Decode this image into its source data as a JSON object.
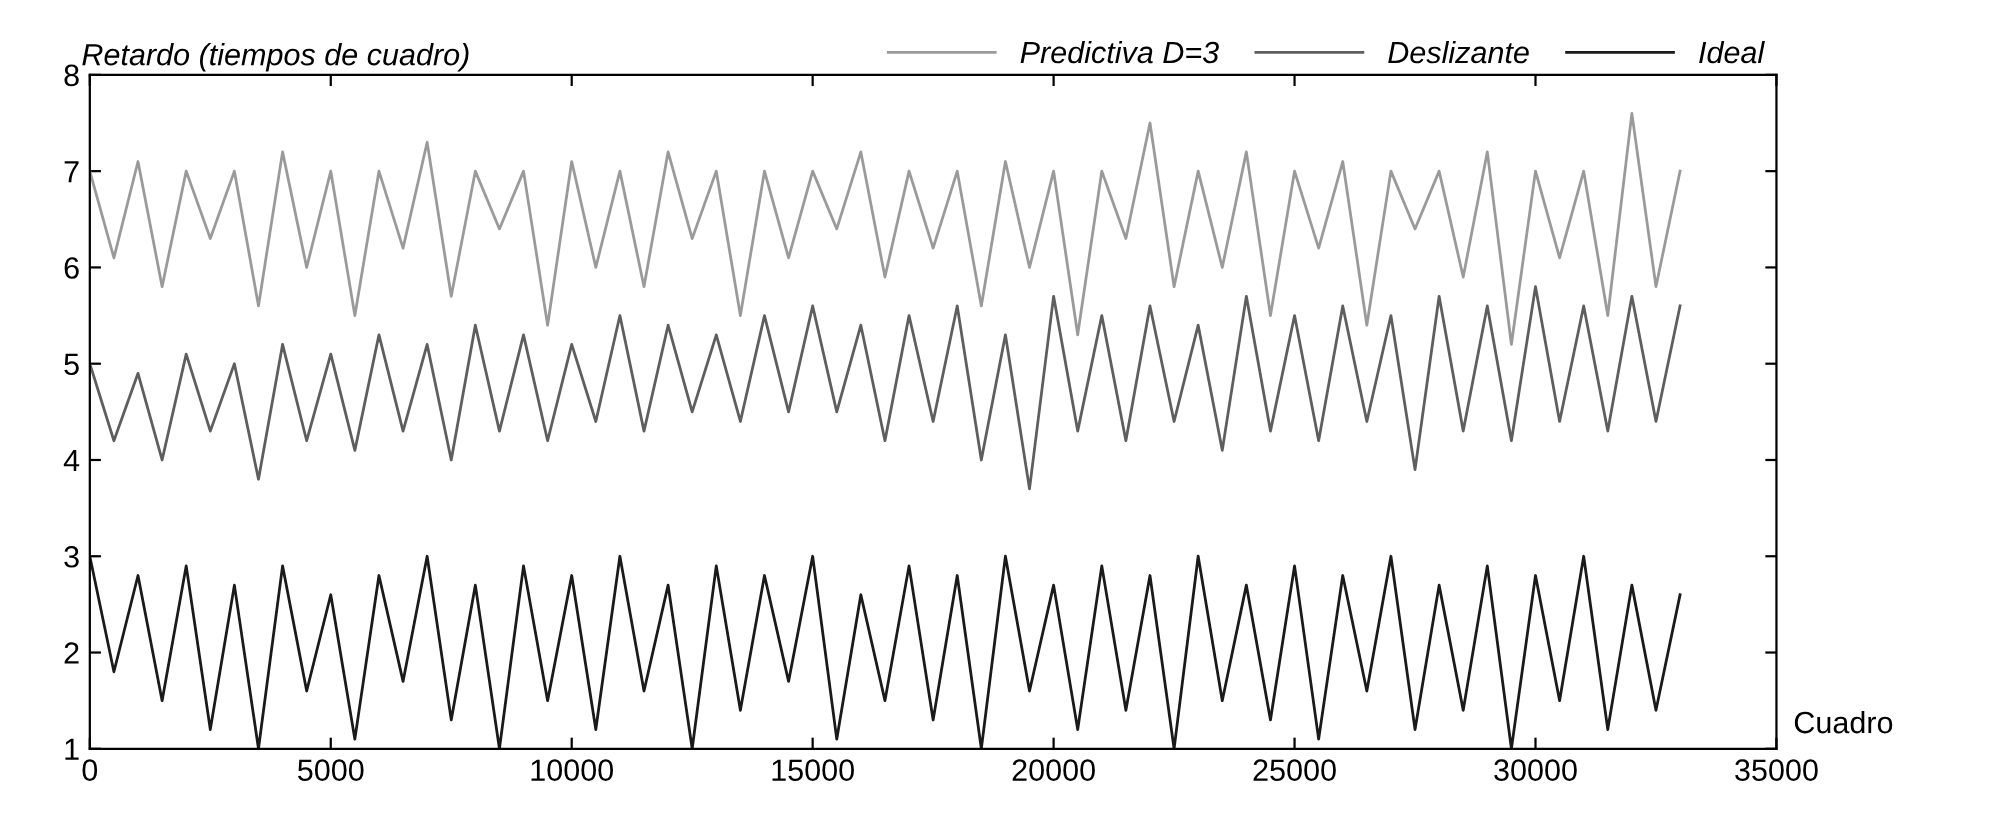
{
  "chart_data": {
    "type": "line",
    "ylabel": "Retardo (tiempos de cuadro)",
    "xlabel": "Cuadro",
    "legend": "top",
    "grid": false,
    "marker": "none",
    "line_style": "solid",
    "xlim": [
      0,
      35000
    ],
    "xticks": [
      0,
      5000,
      10000,
      15000,
      20000,
      25000,
      30000,
      35000
    ],
    "ylim": [
      1,
      8
    ],
    "yticks": [
      1,
      2,
      3,
      4,
      5,
      6,
      7,
      8
    ],
    "x": [
      0,
      500,
      1000,
      1500,
      2000,
      2500,
      3000,
      3500,
      4000,
      4500,
      5000,
      5500,
      6000,
      6500,
      7000,
      7500,
      8000,
      8500,
      9000,
      9500,
      10000,
      10500,
      11000,
      11500,
      12000,
      12500,
      13000,
      13500,
      14000,
      14500,
      15000,
      15500,
      16000,
      16500,
      17000,
      17500,
      18000,
      18500,
      19000,
      19500,
      20000,
      20500,
      21000,
      21500,
      22000,
      22500,
      23000,
      23500,
      24000,
      24500,
      25000,
      25500,
      26000,
      26500,
      27000,
      27500,
      28000,
      28500,
      29000,
      29500,
      30000,
      30500,
      31000,
      31500,
      32000,
      32500,
      33000
    ],
    "series": [
      {
        "name": "Predictiva D=3",
        "color": "#9a9a9a",
        "values": [
          7.0,
          6.1,
          7.1,
          5.8,
          7.0,
          6.3,
          7.0,
          5.6,
          7.2,
          6.0,
          7.0,
          5.5,
          7.0,
          6.2,
          7.3,
          5.7,
          7.0,
          6.4,
          7.0,
          5.4,
          7.1,
          6.0,
          7.0,
          5.8,
          7.2,
          6.3,
          7.0,
          5.5,
          7.0,
          6.1,
          7.0,
          6.4,
          7.2,
          5.9,
          7.0,
          6.2,
          7.0,
          5.6,
          7.1,
          6.0,
          7.0,
          5.3,
          7.0,
          6.3,
          7.5,
          5.8,
          7.0,
          6.0,
          7.2,
          5.5,
          7.0,
          6.2,
          7.1,
          5.4,
          7.0,
          6.4,
          7.0,
          5.9,
          7.2,
          5.2,
          7.0,
          6.1,
          7.0,
          5.5,
          7.6,
          5.8,
          7.0
        ]
      },
      {
        "name": "Deslizante",
        "color": "#5e5e5e",
        "values": [
          5.0,
          4.2,
          4.9,
          4.0,
          5.1,
          4.3,
          5.0,
          3.8,
          5.2,
          4.2,
          5.1,
          4.1,
          5.3,
          4.3,
          5.2,
          4.0,
          5.4,
          4.3,
          5.3,
          4.2,
          5.2,
          4.4,
          5.5,
          4.3,
          5.4,
          4.5,
          5.3,
          4.4,
          5.5,
          4.5,
          5.6,
          4.5,
          5.4,
          4.2,
          5.5,
          4.4,
          5.6,
          4.0,
          5.3,
          3.7,
          5.7,
          4.3,
          5.5,
          4.2,
          5.6,
          4.4,
          5.4,
          4.1,
          5.7,
          4.3,
          5.5,
          4.2,
          5.6,
          4.4,
          5.5,
          3.9,
          5.7,
          4.3,
          5.6,
          4.2,
          5.8,
          4.4,
          5.6,
          4.3,
          5.7,
          4.4,
          5.6
        ]
      },
      {
        "name": "Ideal",
        "color": "#1a1a1a",
        "values": [
          3.0,
          1.8,
          2.8,
          1.5,
          2.9,
          1.2,
          2.7,
          1.0,
          2.9,
          1.6,
          2.6,
          1.1,
          2.8,
          1.7,
          3.0,
          1.3,
          2.7,
          1.0,
          2.9,
          1.5,
          2.8,
          1.2,
          3.0,
          1.6,
          2.7,
          1.0,
          2.9,
          1.4,
          2.8,
          1.7,
          3.0,
          1.1,
          2.6,
          1.5,
          2.9,
          1.3,
          2.8,
          1.0,
          3.0,
          1.6,
          2.7,
          1.2,
          2.9,
          1.4,
          2.8,
          1.0,
          3.0,
          1.5,
          2.7,
          1.3,
          2.9,
          1.1,
          2.8,
          1.6,
          3.0,
          1.2,
          2.7,
          1.4,
          2.9,
          1.0,
          2.8,
          1.5,
          3.0,
          1.2,
          2.7,
          1.4,
          2.6
        ]
      }
    ]
  }
}
